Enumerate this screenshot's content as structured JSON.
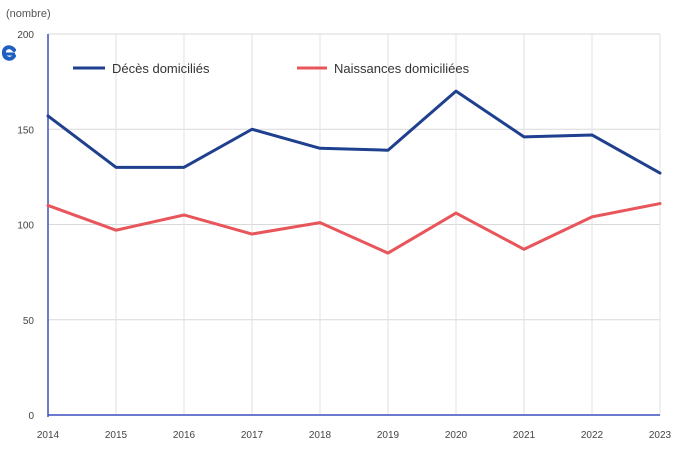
{
  "chart_data": {
    "type": "line",
    "unit_label": "(nombre)",
    "x": [
      "2014",
      "2015",
      "2016",
      "2017",
      "2018",
      "2019",
      "2020",
      "2021",
      "2022",
      "2023"
    ],
    "ylim": [
      0,
      200
    ],
    "yticks": [
      "0",
      "50",
      "100",
      "150",
      "200"
    ],
    "grid": true,
    "legend_position": "top",
    "series": [
      {
        "name": "Décès domiciliés",
        "color": "#1f3f8f",
        "values": [
          157,
          130,
          130,
          150,
          140,
          139,
          170,
          146,
          147,
          127
        ]
      },
      {
        "name": "Naissances domiciliées",
        "color": "#e8555a",
        "values": [
          110,
          97,
          105,
          95,
          101,
          85,
          106,
          87,
          104,
          111
        ]
      }
    ]
  }
}
